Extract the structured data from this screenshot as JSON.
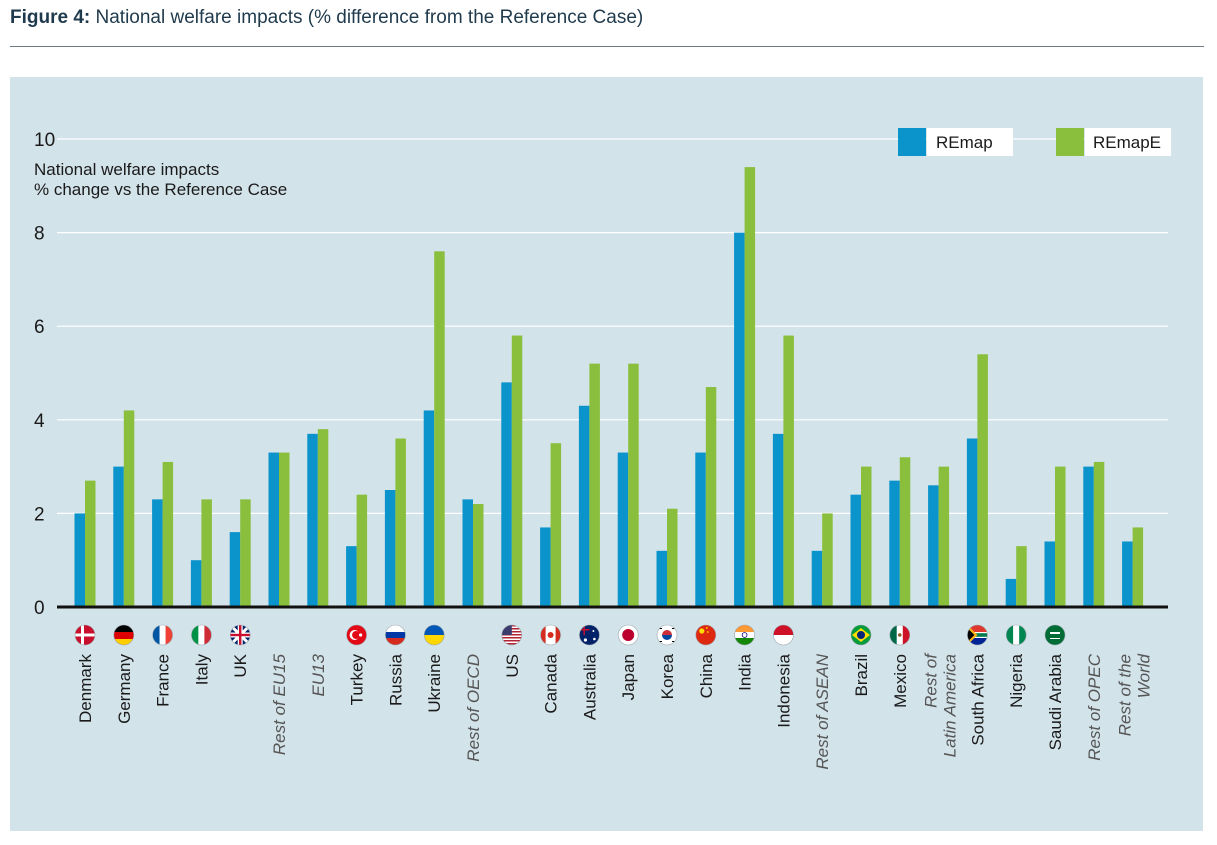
{
  "caption": {
    "prefix": "Figure 4:",
    "text": " National welfare impacts (% difference from the Reference Case)"
  },
  "colors": {
    "remap": "#0b93cb",
    "remape": "#8abf3e",
    "panel_bg": "#d3e3ea",
    "caption_text": "#1f3a4d"
  },
  "chart_data": {
    "type": "bar",
    "ylabel": [
      "National welfare impacts",
      "% change vs the Reference Case"
    ],
    "ylim": [
      0,
      10
    ],
    "yticks": [
      0,
      2,
      4,
      6,
      8,
      10
    ],
    "grid": true,
    "legend_position": "top-right",
    "categories": [
      "Denmark",
      "Germany",
      "France",
      "Italy",
      "UK",
      "Rest of EU15",
      "EU13",
      "Turkey",
      "Russia",
      "Ukraine",
      "Rest of OECD",
      "US",
      "Canada",
      "Australia",
      "Japan",
      "Korea",
      "China",
      "India",
      "Indonesia",
      "Rest of ASEAN",
      "Brazil",
      "Mexico",
      "Rest of Latin America",
      "South Africa",
      "Nigeria",
      "Saudi Arabia",
      "Rest of OPEC",
      "Rest of the World"
    ],
    "category_lines": [
      [
        "Denmark"
      ],
      [
        "Germany"
      ],
      [
        "France"
      ],
      [
        "Italy"
      ],
      [
        "UK"
      ],
      [
        "Rest of EU15"
      ],
      [
        "EU13"
      ],
      [
        "Turkey"
      ],
      [
        "Russia"
      ],
      [
        "Ukraine"
      ],
      [
        "Rest of OECD"
      ],
      [
        "US"
      ],
      [
        "Canada"
      ],
      [
        "Australia"
      ],
      [
        "Japan"
      ],
      [
        "Korea"
      ],
      [
        "China"
      ],
      [
        "India"
      ],
      [
        "Indonesia"
      ],
      [
        "Rest of ASEAN"
      ],
      [
        "Brazil"
      ],
      [
        "Mexico"
      ],
      [
        "Rest of",
        "Latin America"
      ],
      [
        "South Africa"
      ],
      [
        "Nigeria"
      ],
      [
        "Saudi Arabia"
      ],
      [
        "Rest of OPEC"
      ],
      [
        "Rest of the",
        "World"
      ]
    ],
    "category_is_aggregate": [
      false,
      false,
      false,
      false,
      false,
      true,
      true,
      false,
      false,
      false,
      true,
      false,
      false,
      false,
      false,
      false,
      false,
      false,
      false,
      true,
      false,
      false,
      true,
      false,
      false,
      false,
      true,
      true
    ],
    "category_flags": [
      "flag-denmark-icon",
      "flag-germany-icon",
      "flag-france-icon",
      "flag-italy-icon",
      "flag-uk-icon",
      "",
      "",
      "flag-turkey-icon",
      "flag-russia-icon",
      "flag-ukraine-icon",
      "",
      "flag-us-icon",
      "flag-canada-icon",
      "flag-australia-icon",
      "flag-japan-icon",
      "flag-korea-icon",
      "flag-china-icon",
      "flag-india-icon",
      "flag-indonesia-icon",
      "",
      "flag-brazil-icon",
      "flag-mexico-icon",
      "",
      "flag-south-africa-icon",
      "flag-nigeria-icon",
      "flag-saudi-arabia-icon",
      "",
      ""
    ],
    "series": [
      {
        "name": "REmap",
        "values": [
          2.0,
          3.0,
          2.3,
          1.0,
          1.6,
          3.3,
          3.7,
          1.3,
          2.5,
          4.2,
          2.3,
          4.8,
          1.7,
          4.3,
          3.3,
          1.2,
          3.3,
          8.0,
          3.7,
          1.2,
          2.4,
          2.7,
          2.6,
          3.6,
          0.6,
          1.4,
          3.0,
          1.4
        ]
      },
      {
        "name": "REmapE",
        "values": [
          2.7,
          4.2,
          3.1,
          2.3,
          2.3,
          3.3,
          3.8,
          2.4,
          3.6,
          7.6,
          2.2,
          5.8,
          3.5,
          5.2,
          5.2,
          2.1,
          4.7,
          9.4,
          5.8,
          2.0,
          3.0,
          3.2,
          3.0,
          5.4,
          1.3,
          3.0,
          3.1,
          1.7
        ]
      }
    ]
  }
}
